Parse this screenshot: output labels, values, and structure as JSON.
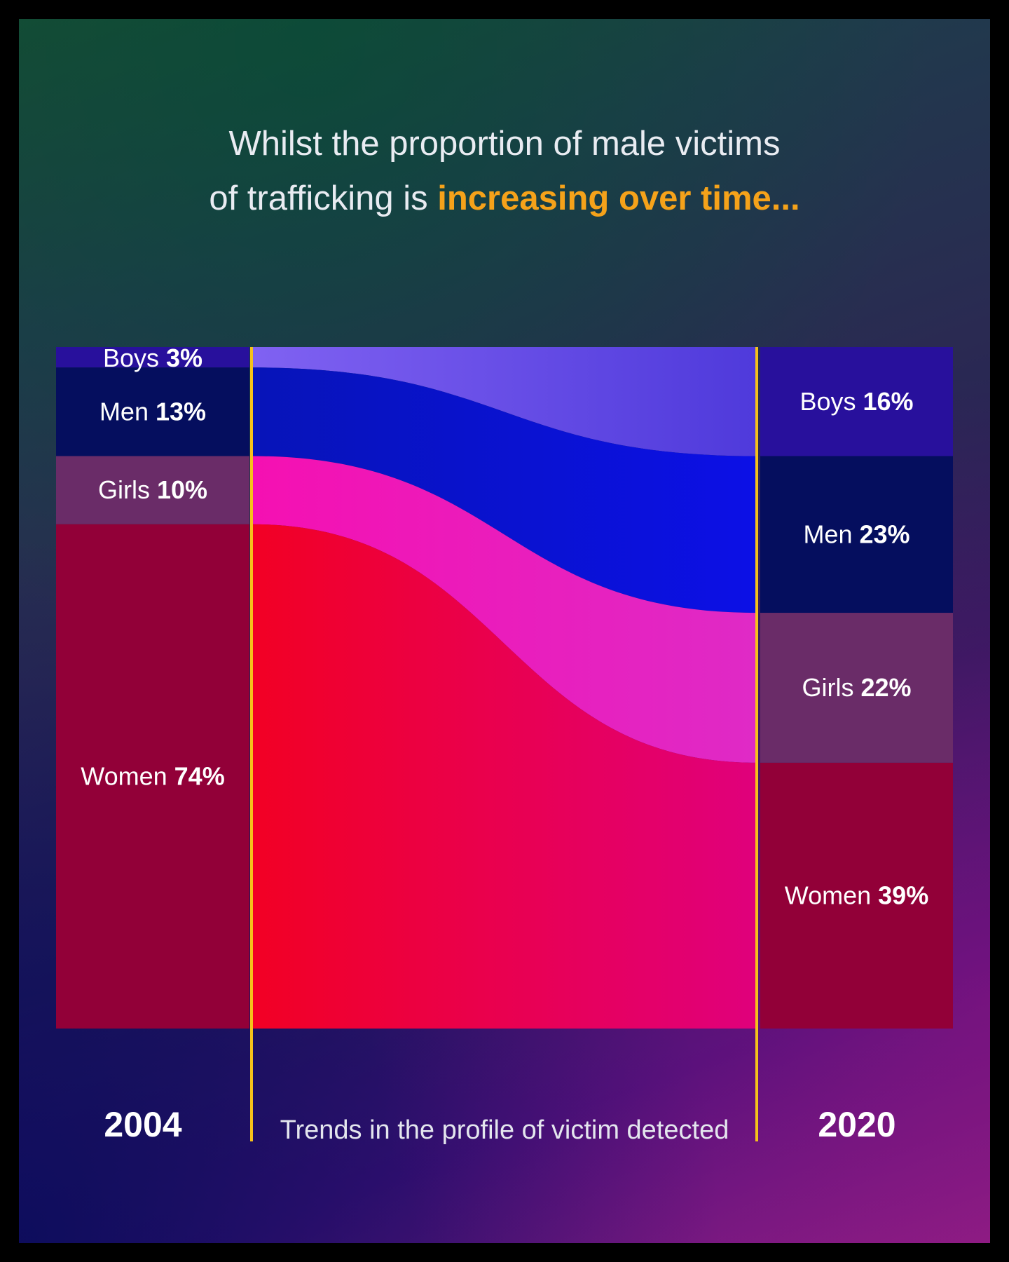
{
  "headline": {
    "line1": "Whilst the proportion of male victims",
    "line2_prefix": "of trafficking is ",
    "line2_highlight": "increasing over time..."
  },
  "colors": {
    "highlight": "#f5a21a",
    "divider": "#f5c21a",
    "bar_fill": {
      "Boys": "#28109c",
      "Men": "#050e5e",
      "Girls": "#6a2c68",
      "Women": "#920038"
    },
    "flow_fill": {
      "Boys": [
        "#8062f2",
        "#4f3adb"
      ],
      "Men": [
        "#0714b8",
        "#0c10e6"
      ],
      "Girls": [
        "#f510b2",
        "#df2ac6"
      ],
      "Women": [
        "#f20024",
        "#e0007c"
      ]
    }
  },
  "caption": "Trends in the profile of victim detected",
  "chart_data": {
    "type": "sankey",
    "title": "Trends in the profile of victim detected",
    "categories": [
      "Boys",
      "Men",
      "Girls",
      "Women"
    ],
    "series": [
      {
        "name": "2004",
        "values": [
          3,
          13,
          10,
          74
        ]
      },
      {
        "name": "2020",
        "values": [
          16,
          23,
          22,
          39
        ]
      }
    ],
    "units": "%",
    "labels": [
      "2004",
      "2020"
    ]
  }
}
